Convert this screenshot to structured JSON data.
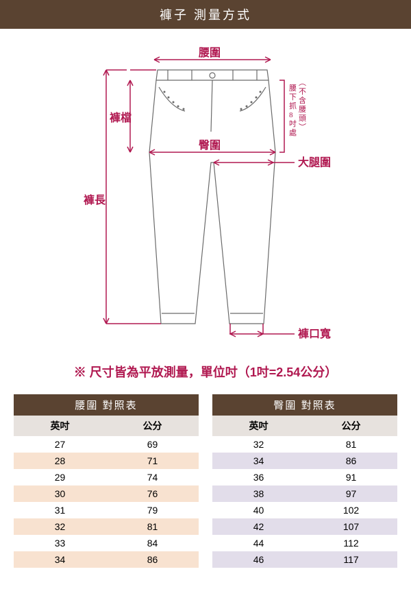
{
  "header": {
    "title": "褲子 測量方式"
  },
  "diagram": {
    "labels": {
      "waist": "腰圍",
      "rise": "褲檔",
      "hip": "臀圍",
      "thigh": "大腿圍",
      "length": "褲長",
      "hem": "褲口寬",
      "side_note": "腰下抓8吋處（不含腰頭）"
    },
    "colors": {
      "outline": "#6a6a6a",
      "measure": "#b01850",
      "measure_line_width": 1.5,
      "outline_width": 1.2
    }
  },
  "note": "※ 尺寸皆為平放測量，單位吋（1吋=2.54公分）",
  "tables": {
    "waist": {
      "title": "腰圍 對照表",
      "columns": [
        "英吋",
        "公分"
      ],
      "rows": [
        [
          "27",
          "69"
        ],
        [
          "28",
          "71"
        ],
        [
          "29",
          "74"
        ],
        [
          "30",
          "76"
        ],
        [
          "31",
          "79"
        ],
        [
          "32",
          "81"
        ],
        [
          "33",
          "84"
        ],
        [
          "34",
          "86"
        ]
      ],
      "alt_row_bg": "#f8e2d0"
    },
    "hip": {
      "title": "臀圍 對照表",
      "columns": [
        "英吋",
        "公分"
      ],
      "rows": [
        [
          "32",
          "81"
        ],
        [
          "34",
          "86"
        ],
        [
          "36",
          "91"
        ],
        [
          "38",
          "97"
        ],
        [
          "40",
          "102"
        ],
        [
          "42",
          "107"
        ],
        [
          "44",
          "112"
        ],
        [
          "46",
          "117"
        ]
      ],
      "alt_row_bg": "#e2ddea"
    }
  }
}
